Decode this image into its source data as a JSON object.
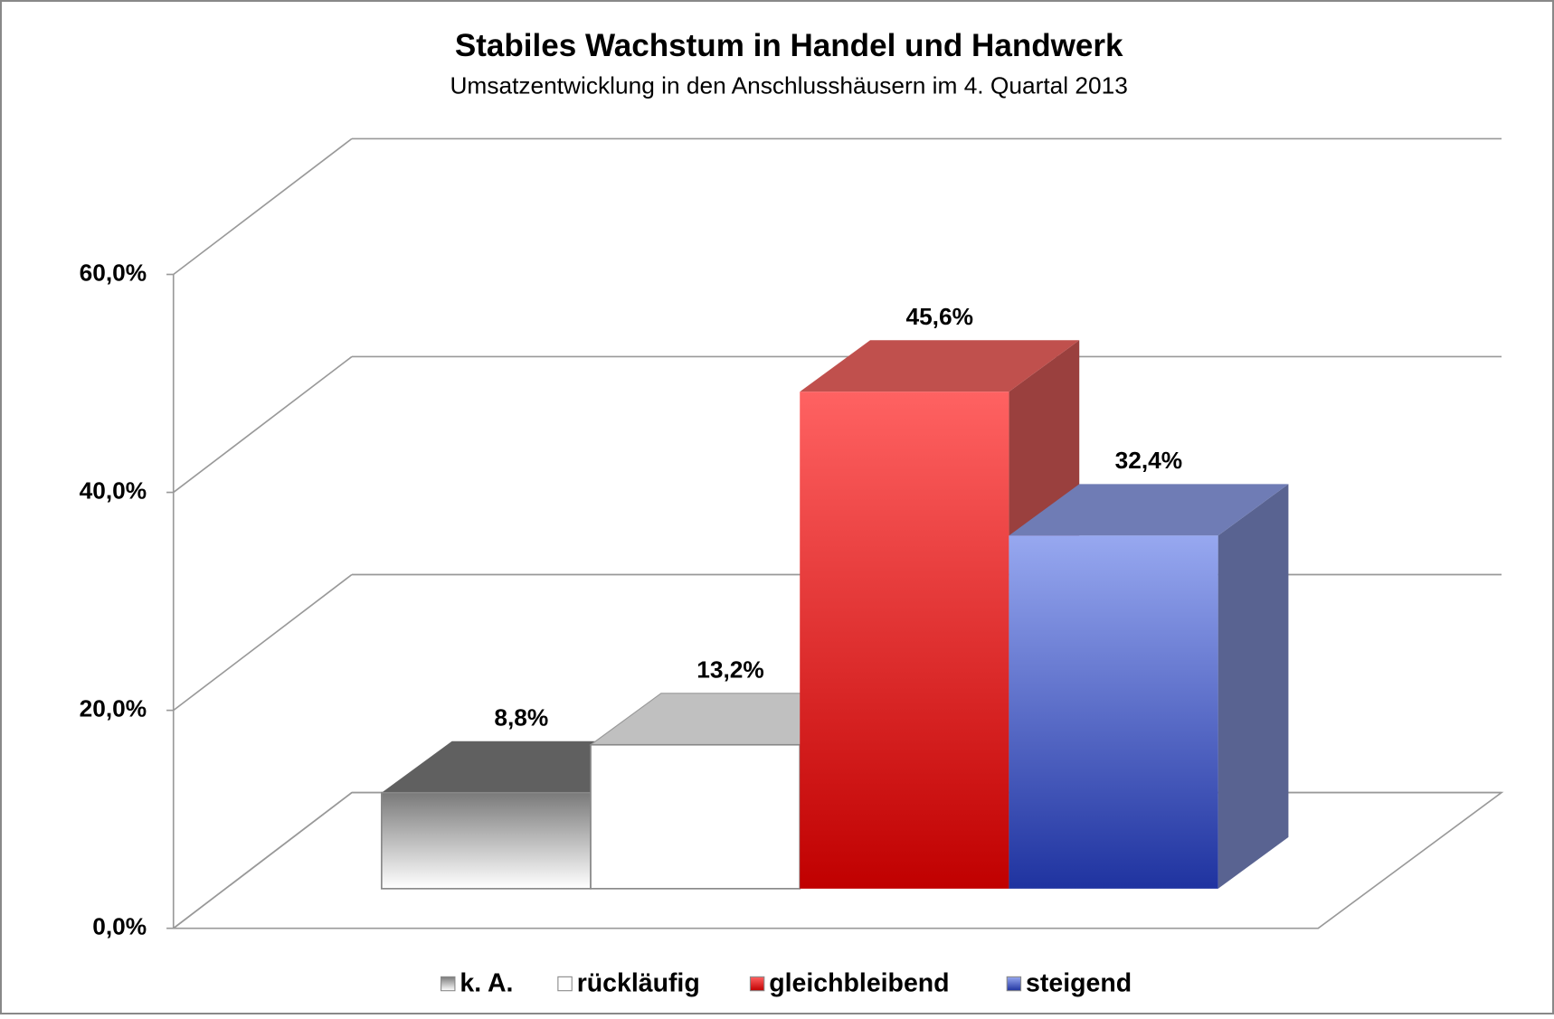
{
  "chart_data": {
    "type": "bar3d",
    "title": "Stabiles Wachstum in Handel und Handwerk",
    "subtitle": "Umsatzentwicklung in den Anschlusshäusern im 4. Quartal 2013",
    "series": [
      {
        "name": "k. A.",
        "color": "#606060",
        "values": [
          8.8
        ],
        "value_labels": [
          "8,8%"
        ]
      },
      {
        "name": "rückläufig",
        "color": "#c0c0c0",
        "values": [
          13.2
        ],
        "value_labels": [
          "13,2%"
        ]
      },
      {
        "name": "gleichbleibend",
        "color": "#c0504d",
        "values": [
          45.6
        ],
        "value_labels": [
          "45,6%"
        ]
      },
      {
        "name": "steigend",
        "color": "#6f7cb5",
        "values": [
          32.4
        ],
        "value_labels": [
          "32,4%"
        ]
      }
    ],
    "ylim": [
      0,
      60
    ],
    "yticks": [
      {
        "value": 0,
        "label": "0,0%"
      },
      {
        "value": 20,
        "label": "20,0%"
      },
      {
        "value": 40,
        "label": "40,0%"
      },
      {
        "value": 60,
        "label": "60,0%"
      }
    ],
    "grid": true,
    "legend": "bottom"
  }
}
